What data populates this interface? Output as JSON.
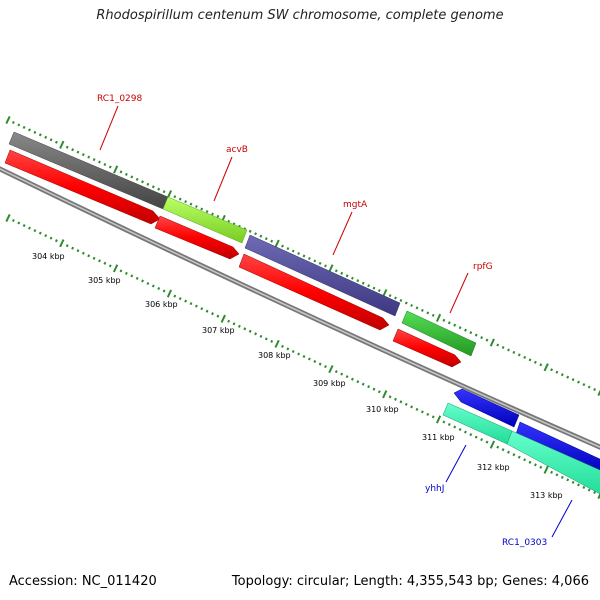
{
  "title": "Rhodospirillum centenum SW chromosome, complete genome",
  "accession_text": "Accession: NC_011420",
  "summary_text": "Topology: circular; Length: 4,355,543 bp; Genes: 4,066",
  "kbp_labels": [
    "304 kbp",
    "305 kbp",
    "306 kbp",
    "307 kbp",
    "308 kbp",
    "309 kbp",
    "310 kbp",
    "311 kbp",
    "312 kbp",
    "313 kbp"
  ],
  "gene_labels": [
    {
      "name": "RC1_0298",
      "color": "#cc0000"
    },
    {
      "name": "acvB",
      "color": "#cc0000"
    },
    {
      "name": "mgtA",
      "color": "#cc0000"
    },
    {
      "name": "rpfG",
      "color": "#cc0000"
    },
    {
      "name": "yhhJ",
      "color": "#0000cc"
    },
    {
      "name": "RC1_0303",
      "color": "#0000cc"
    }
  ],
  "colors": {
    "tick": "#2e8b2e",
    "backbone": "#8c8c8c",
    "cds": "#ff0000",
    "RC1_0298": "#666666",
    "acvB": "#99ee33",
    "mgtA": "#55509a",
    "rpfG": "#33bb33",
    "yhhJ_cds": "#0000ee",
    "reverse_feature": "#33ffaa"
  }
}
